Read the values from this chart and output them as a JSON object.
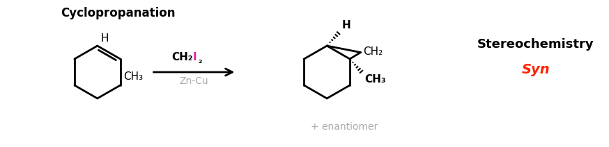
{
  "title": "Cyclopropanation",
  "stereochem_title": "Stereochemistry",
  "stereochem_value": "Syn",
  "enantiomer_text": "+ enantiomer",
  "background_color": "#ffffff",
  "black": "#000000",
  "gray": "#aaaaaa",
  "pink": "#dd22aa",
  "red": "#ff2200"
}
